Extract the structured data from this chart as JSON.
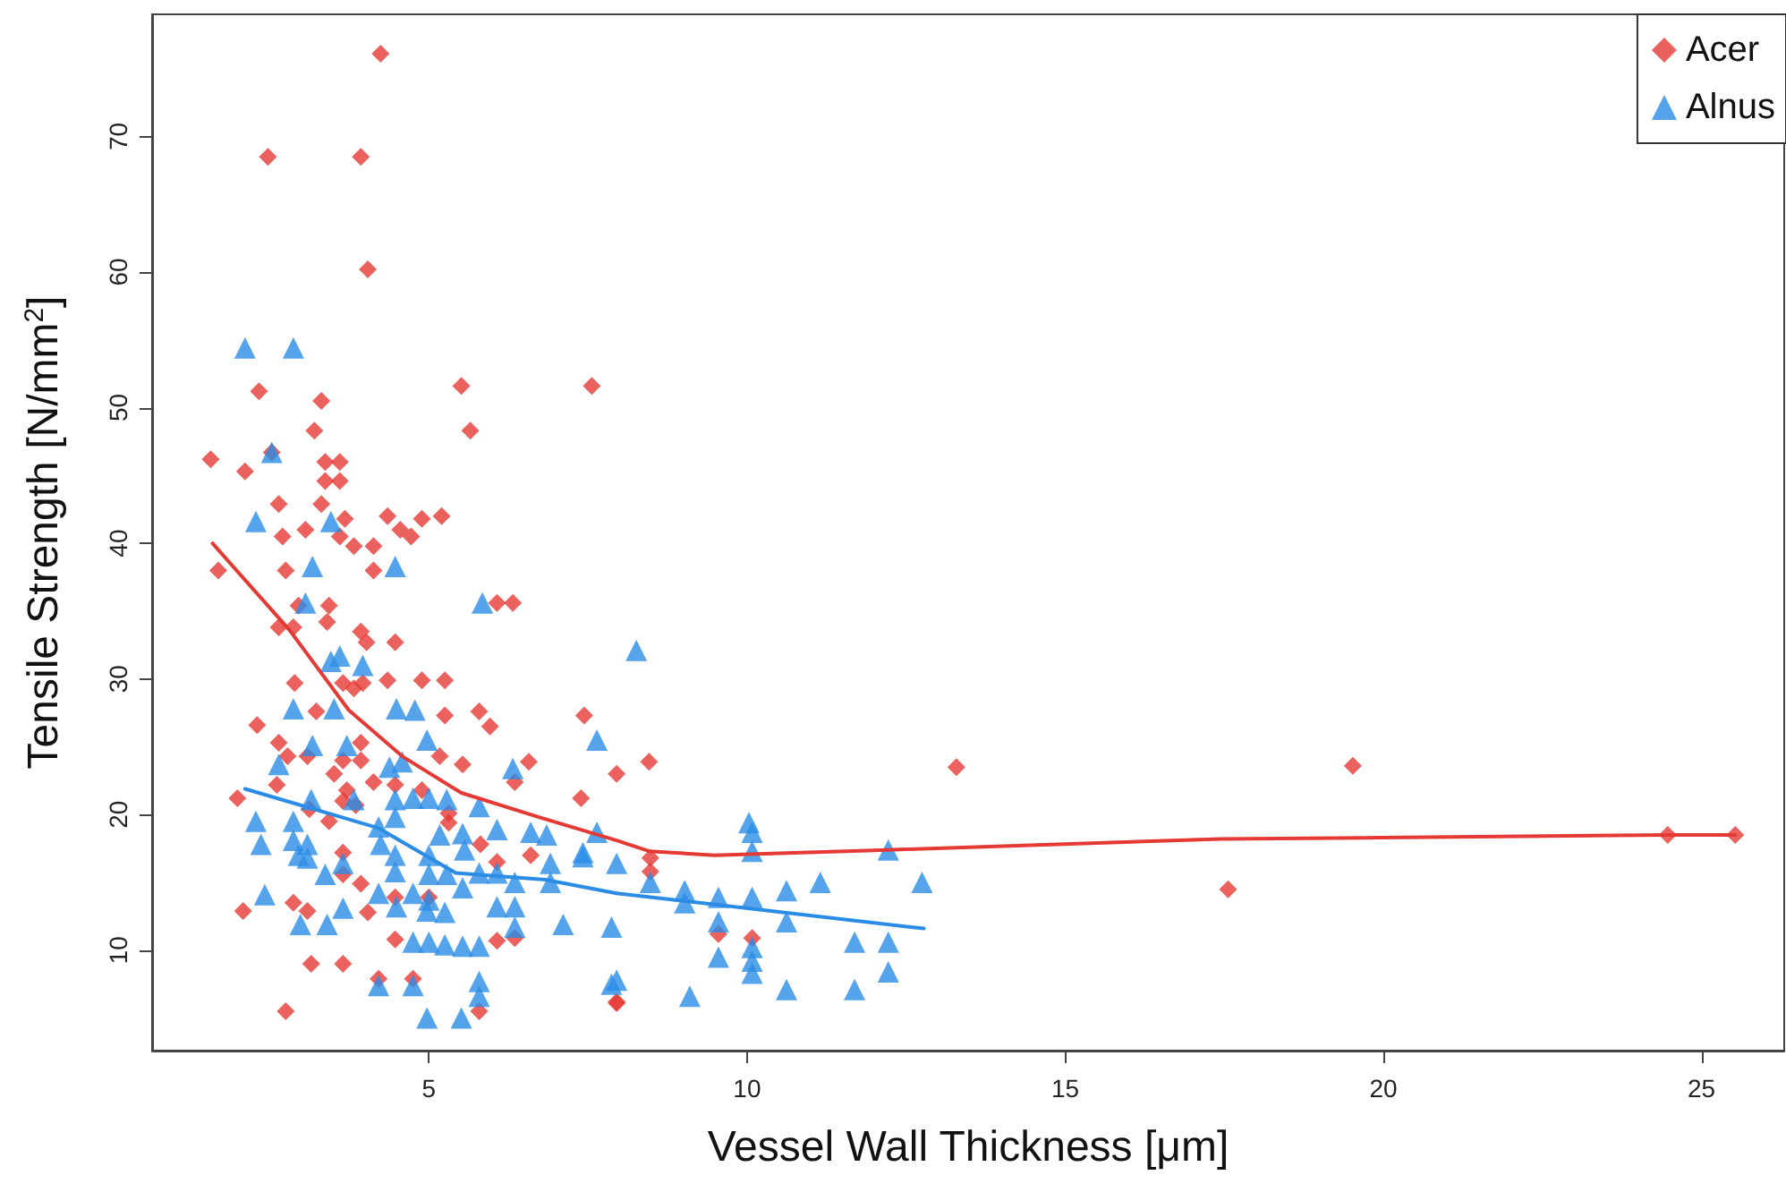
{
  "chart_data": {
    "type": "scatter",
    "xlabel": "Vessel Wall Thickness [μm]",
    "ylabel": "Tensile Strength [N/mm$^{2}$]",
    "xlim": [
      0.65,
      26.3
    ],
    "xticks": [
      5,
      10,
      15,
      20,
      25
    ],
    "ylim": [
      2.6,
      79
    ],
    "yticks": [
      10,
      20,
      30,
      40,
      50,
      60,
      70
    ],
    "grid": false,
    "legend": "top right",
    "series": [
      {
        "name": "Acer",
        "color": "#e53935",
        "marker": "diamond",
        "x": [
          4.24,
          2.47,
          3.93,
          4.04,
          2.33,
          3.31,
          5.51,
          7.56,
          3.2,
          5.65,
          1.57,
          2.11,
          2.53,
          3.37,
          3.6,
          3.37,
          3.6,
          2.64,
          3.31,
          3.68,
          4.35,
          4.89,
          5.2,
          4.55,
          3.06,
          2.7,
          3.6,
          3.82,
          4.13,
          4.72,
          1.69,
          2.75,
          4.13,
          6.07,
          6.32,
          2.95,
          3.43,
          3.4,
          2.64,
          2.87,
          3.93,
          4.02,
          4.47,
          2.89,
          3.65,
          3.82,
          3.96,
          4.35,
          4.89,
          5.25,
          3.23,
          5.25,
          5.79,
          5.96,
          7.44,
          2.3,
          2.64,
          2.78,
          3.09,
          3.93,
          3.93,
          3.65,
          5.17,
          5.53,
          6.57,
          3.51,
          4.13,
          4.47,
          6.35,
          2.61,
          1.99,
          3.71,
          3.65,
          3.85,
          4.89,
          7.39,
          3.12,
          3.43,
          5.31,
          5.31,
          5.81,
          3.65,
          6.6,
          6.07,
          3.65,
          3.93,
          2.08,
          2.87,
          3.09,
          4.04,
          4.47,
          5.0,
          4.47,
          6.07,
          6.35,
          3.15,
          3.65,
          4.21,
          4.75,
          2.75,
          5.79,
          7.95,
          7.95,
          8.46,
          8.48,
          8.48,
          9.55,
          10.08,
          7.95,
          13.29,
          17.56,
          19.52,
          24.47,
          25.53
        ],
        "values": [
          76.1,
          68.5,
          68.5,
          60.2,
          51.2,
          50.5,
          51.6,
          51.6,
          48.3,
          48.3,
          46.2,
          45.3,
          46.7,
          46.0,
          46.0,
          44.6,
          44.6,
          42.9,
          42.9,
          41.8,
          42.0,
          41.8,
          42.0,
          41.0,
          41.0,
          40.5,
          40.5,
          39.8,
          39.8,
          40.5,
          38.0,
          38.0,
          38.0,
          35.6,
          35.6,
          35.4,
          35.4,
          34.2,
          33.8,
          33.8,
          33.5,
          32.7,
          32.7,
          29.7,
          29.7,
          29.3,
          29.7,
          29.9,
          29.9,
          29.9,
          27.6,
          27.3,
          27.6,
          26.5,
          27.3,
          26.6,
          25.3,
          24.3,
          24.3,
          25.3,
          24.0,
          24.0,
          24.3,
          23.7,
          23.9,
          23.0,
          22.4,
          22.2,
          22.4,
          22.2,
          21.2,
          21.8,
          21.0,
          20.7,
          21.8,
          21.2,
          20.4,
          19.5,
          20.1,
          19.4,
          17.8,
          17.2,
          17.0,
          16.5,
          15.6,
          14.9,
          12.9,
          13.5,
          12.9,
          12.8,
          13.9,
          13.9,
          10.8,
          10.7,
          10.9,
          9.0,
          9.0,
          7.9,
          7.9,
          5.5,
          5.5,
          6.2,
          23.0,
          23.9,
          16.8,
          15.8,
          11.2,
          10.9,
          6.1,
          23.5,
          14.5,
          23.6,
          18.5,
          18.5
        ]
      },
      {
        "name": "Alnus",
        "color": "#2b8ce6",
        "marker": "triangle",
        "x": [
          2.11,
          2.87,
          2.53,
          2.28,
          3.46,
          3.17,
          4.47,
          3.06,
          5.84,
          3.6,
          3.46,
          3.96,
          2.87,
          3.51,
          4.49,
          4.78,
          4.97,
          3.17,
          3.71,
          2.64,
          4.38,
          4.58,
          6.32,
          7.64,
          3.82,
          3.15,
          4.47,
          4.75,
          5.0,
          5.28,
          5.79,
          2.28,
          2.87,
          4.21,
          4.47,
          5.17,
          5.53,
          6.07,
          6.6,
          6.85,
          7.64,
          2.36,
          2.87,
          3.09,
          4.24,
          4.47,
          5.0,
          5.56,
          2.95,
          3.09,
          3.65,
          4.47,
          3.37,
          5.0,
          5.28,
          5.79,
          6.07,
          6.91,
          7.42,
          6.35,
          6.91,
          5.53,
          2.42,
          4.21,
          4.75,
          5.0,
          6.35,
          2.98,
          3.4,
          3.65,
          4.49,
          4.97,
          5.25,
          6.07,
          6.35,
          7.11,
          4.75,
          5.0,
          5.25,
          5.53,
          5.79,
          4.21,
          4.75,
          5.79,
          5.79,
          4.97,
          5.51,
          7.87,
          7.87,
          8.26,
          7.42,
          7.95,
          8.48,
          9.02,
          9.02,
          9.55,
          9.55,
          10.08,
          10.03,
          10.08,
          10.08,
          10.62,
          10.62,
          11.15,
          12.22,
          12.75,
          7.95,
          9.1,
          9.55,
          10.08,
          10.08,
          10.08,
          10.62,
          11.69,
          12.22,
          11.69,
          12.22
        ],
        "values": [
          54.4,
          54.4,
          46.7,
          41.6,
          41.6,
          38.3,
          38.3,
          35.6,
          35.6,
          31.7,
          31.3,
          31.0,
          27.8,
          27.8,
          27.8,
          27.7,
          25.5,
          25.1,
          25.1,
          23.7,
          23.5,
          23.9,
          23.4,
          25.5,
          21.1,
          21.1,
          21.1,
          21.2,
          21.2,
          21.1,
          20.6,
          19.5,
          19.5,
          19.1,
          19.8,
          18.5,
          18.6,
          18.9,
          18.7,
          18.5,
          18.7,
          17.8,
          18.1,
          17.8,
          17.8,
          17.0,
          17.0,
          17.4,
          17.0,
          16.8,
          16.4,
          15.8,
          15.6,
          15.6,
          15.6,
          15.7,
          15.7,
          16.4,
          16.9,
          15.0,
          15.0,
          14.6,
          14.1,
          14.2,
          14.2,
          13.7,
          13.2,
          11.9,
          11.9,
          13.1,
          13.2,
          12.9,
          12.8,
          13.2,
          11.7,
          11.9,
          10.6,
          10.6,
          10.4,
          10.3,
          10.3,
          7.4,
          7.4,
          7.7,
          6.6,
          5.0,
          5.0,
          11.7,
          7.5,
          32.1,
          17.2,
          16.4,
          15.0,
          14.4,
          13.5,
          13.9,
          12.1,
          13.9,
          19.4,
          18.7,
          17.3,
          14.4,
          12.1,
          15.0,
          17.4,
          15.0,
          7.8,
          6.6,
          9.5,
          10.2,
          9.2,
          8.3,
          7.1,
          10.6,
          10.6,
          7.1,
          8.4
        ]
      },
      {
        "type": "line",
        "color": "#e53935",
        "marker": "none",
        "line_style": "solid",
        "x": [
          1.6,
          2.81,
          3.74,
          4.58,
          5.51,
          6.74,
          7.95,
          8.46,
          9.49,
          12.22,
          17.44,
          19.97,
          24.47,
          25.53
        ],
        "values": [
          40.0,
          33.6,
          27.7,
          24.3,
          21.6,
          19.8,
          18.1,
          17.3,
          17.0,
          17.4,
          18.2,
          18.3,
          18.5,
          18.5
        ]
      },
      {
        "type": "line",
        "color": "#2b8ce6",
        "marker": "none",
        "line_style": "solid",
        "x": [
          2.11,
          4.21,
          5.42,
          6.83,
          7.95,
          12.78
        ],
        "values": [
          21.9,
          19.0,
          15.7,
          15.2,
          14.2,
          11.6
        ]
      }
    ]
  }
}
